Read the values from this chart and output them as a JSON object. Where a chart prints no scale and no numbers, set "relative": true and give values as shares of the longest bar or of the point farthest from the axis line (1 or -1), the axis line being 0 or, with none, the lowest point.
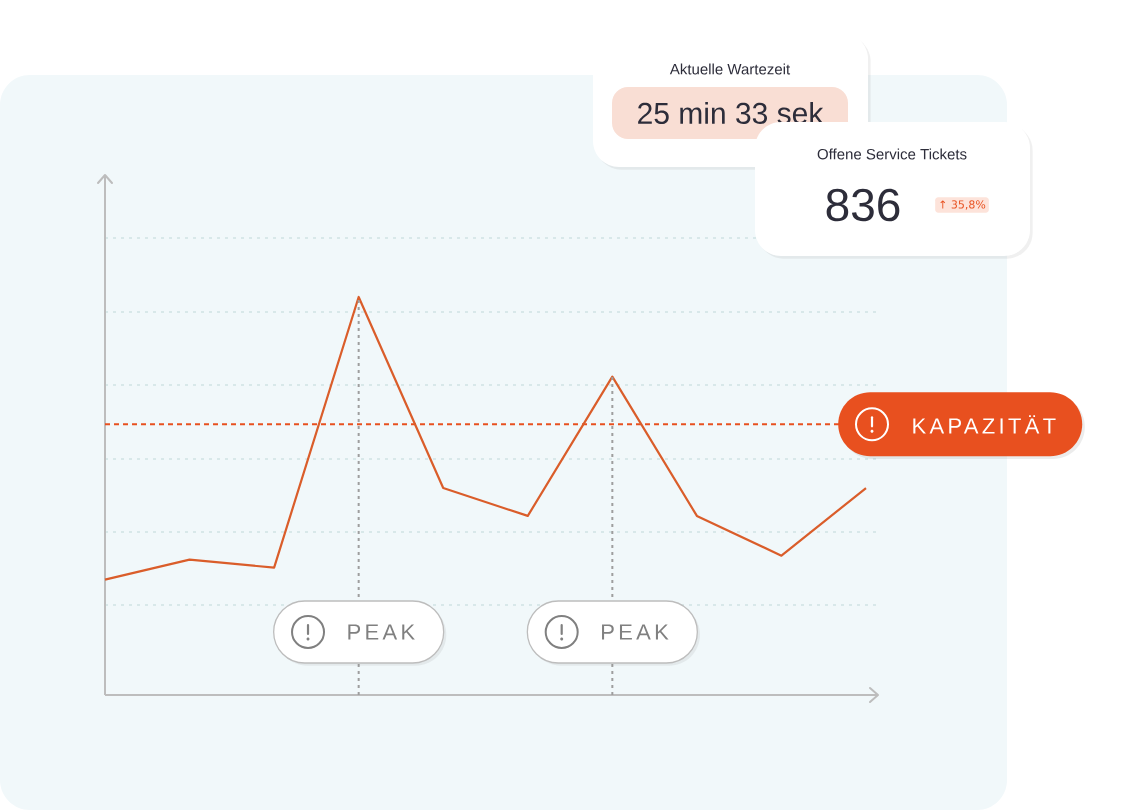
{
  "chart_data": {
    "type": "line",
    "relative": true,
    "categories": [
      null,
      null,
      null,
      null,
      null,
      null,
      null,
      null,
      null,
      null
    ],
    "values": [
      0.29,
      0.34,
      0.32,
      1,
      0.52,
      0.45,
      0.8,
      0.45,
      0.35,
      0.52
    ],
    "color": "#da5d2a",
    "marker": "none",
    "line_style": "solid",
    "grid": "y",
    "ref_lines": [
      {
        "axis": "y",
        "value": 0.68,
        "label": "KAPAZITÄT",
        "color": "#e8501f",
        "line_style": "dashed"
      }
    ],
    "annotations": [
      "Aktuelle Wartezeit",
      "25 min 33 sek",
      "Offene Service Tickets",
      "836",
      "↑ 35,8%",
      "PEAK",
      "PEAK"
    ]
  }
}
